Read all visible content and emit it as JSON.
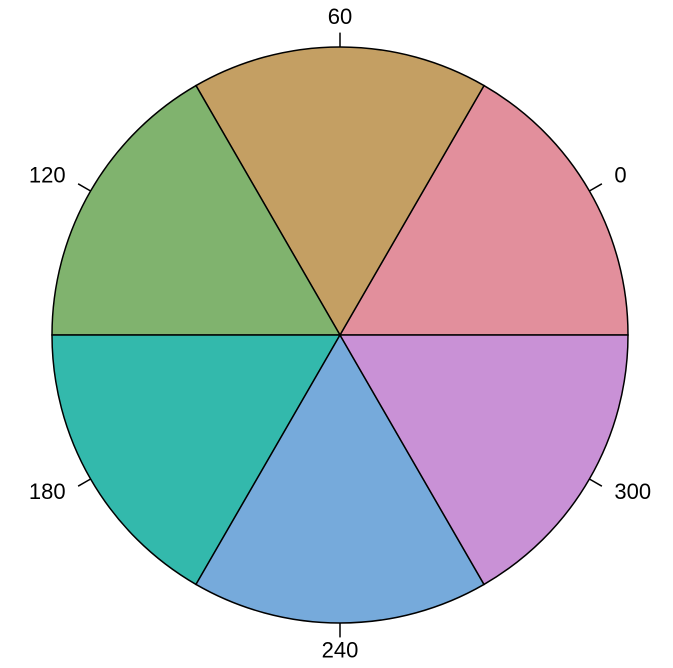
{
  "chart_data": {
    "type": "pie",
    "categories": [
      "0",
      "60",
      "120",
      "180",
      "240",
      "300"
    ],
    "values": [
      1,
      1,
      1,
      1,
      1,
      1
    ],
    "colors": [
      "#e28f9c",
      "#c49f63",
      "#80b36e",
      "#33b9ac",
      "#76aadb",
      "#c991d6"
    ]
  }
}
